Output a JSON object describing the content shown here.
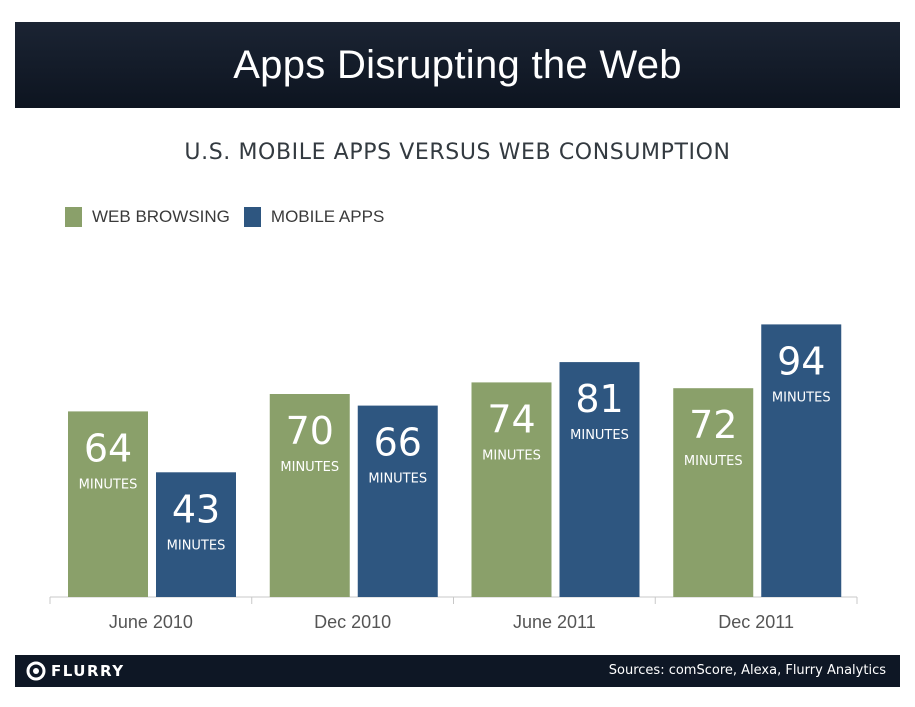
{
  "header": {
    "title": "Apps Disrupting the Web"
  },
  "footer": {
    "logo_text": "FLURRY",
    "sources": "Sources: comScore, Alexa, Flurry Analytics"
  },
  "colors": {
    "web": "#8aa06a",
    "apps": "#2e5680"
  },
  "chart_data": {
    "type": "bar",
    "title": "U.S. MOBILE APPS VERSUS WEB CONSUMPTION",
    "categories": [
      "June 2010",
      "Dec 2010",
      "June 2011",
      "Dec 2011"
    ],
    "series": [
      {
        "name": "WEB BROWSING",
        "values": [
          64,
          70,
          74,
          72
        ]
      },
      {
        "name": "MOBILE APPS",
        "values": [
          43,
          66,
          81,
          94
        ]
      }
    ],
    "data_label_unit": "MINUTES",
    "ylim": [
      0,
      100
    ],
    "grid": false,
    "legend": "top-left"
  }
}
